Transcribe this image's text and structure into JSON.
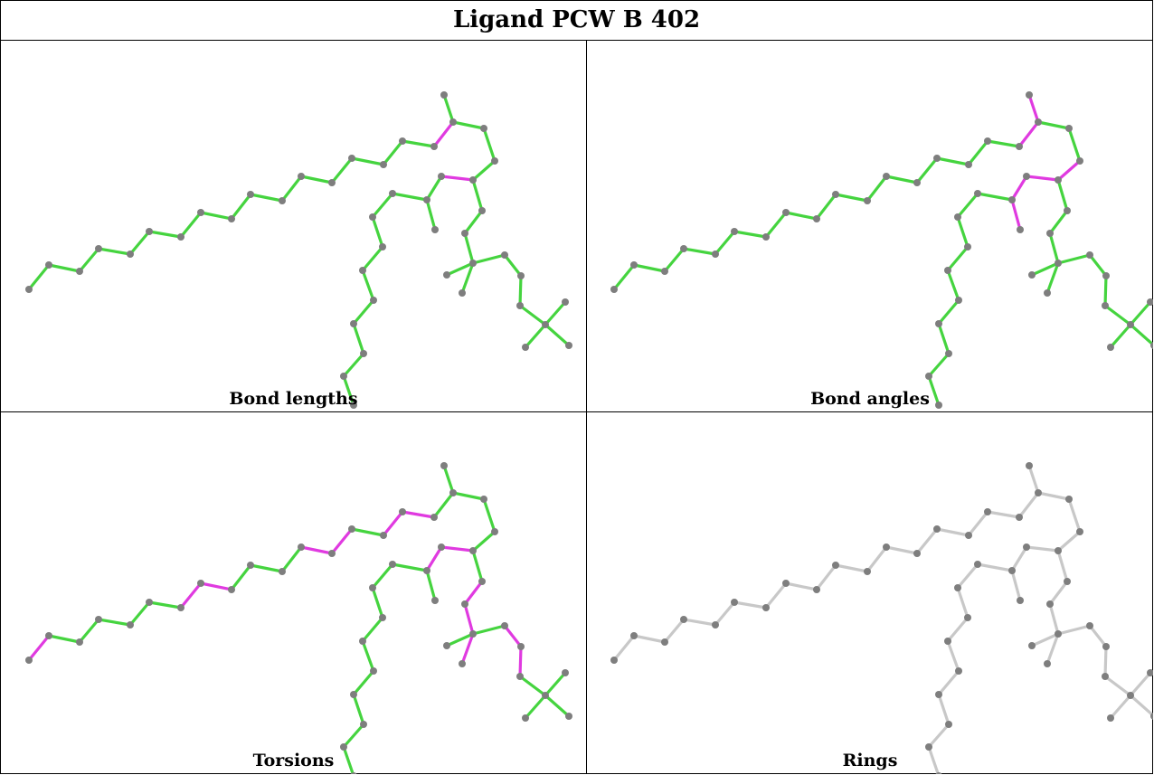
{
  "title": "Ligand PCW B 402",
  "colors": {
    "good": "#45d43f",
    "outlier": "#e03ae0",
    "neutral": "#c8c8c8",
    "atom": "#7e7e7e"
  },
  "panels": [
    {
      "caption": "Bond lengths",
      "mode": "bonds",
      "outliers": [
        "13-14",
        "25-26"
      ]
    },
    {
      "caption": "Bond angles",
      "mode": "bonds",
      "outliers": [
        "13-14",
        "14-15",
        "25-26",
        "26-27",
        "27-28",
        "26-29",
        "25-24"
      ]
    },
    {
      "caption": "Torsions",
      "mode": "bonds",
      "outliers": [
        "0-1",
        "6-7",
        "7-8",
        "12-13",
        "25-26",
        "26-27",
        "18-19",
        "20-22",
        "20-21",
        "39-40",
        "40-41",
        "41-42",
        "42-43",
        "43-44",
        "44-45",
        "45-46",
        "46-47",
        "47-48",
        "48-49",
        "49-50"
      ]
    },
    {
      "caption": "Rings",
      "mode": "neutral",
      "outliers": []
    }
  ]
}
